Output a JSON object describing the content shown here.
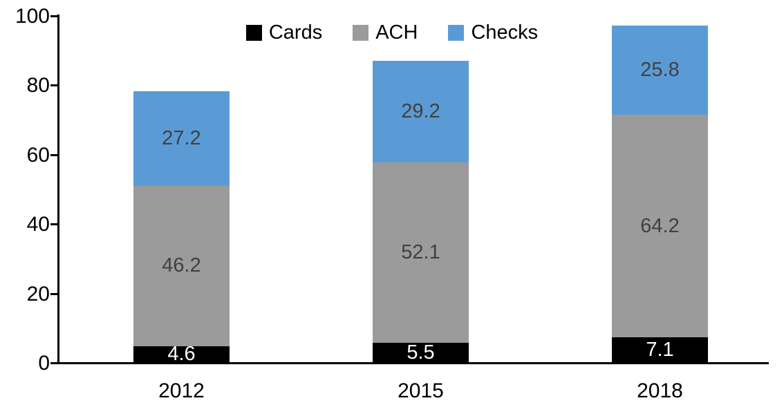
{
  "chart_data": {
    "type": "bar",
    "stacked": true,
    "title": "",
    "categories": [
      "2012",
      "2015",
      "2018"
    ],
    "series": [
      {
        "name": "Cards",
        "color": "#000000",
        "label_color": "#ffffff",
        "values": [
          4.6,
          5.5,
          7.1
        ]
      },
      {
        "name": "ACH",
        "color": "#9B9B9B",
        "label_color": "#404040",
        "values": [
          46.2,
          52.1,
          64.2
        ]
      },
      {
        "name": "Checks",
        "color": "#5B9BD5",
        "label_color": "#404040",
        "values": [
          27.2,
          29.2,
          25.8
        ]
      }
    ],
    "totals": [
      78.0,
      86.8,
      97.1
    ],
    "ylim": [
      0,
      100
    ],
    "yticks": [
      0,
      20,
      40,
      60,
      80,
      100
    ],
    "grid": false,
    "legend_position": "top",
    "legend_labels": [
      "Cards",
      "ACH",
      "Checks"
    ],
    "axis_color": "#000000",
    "xlabel": "",
    "ylabel": ""
  }
}
